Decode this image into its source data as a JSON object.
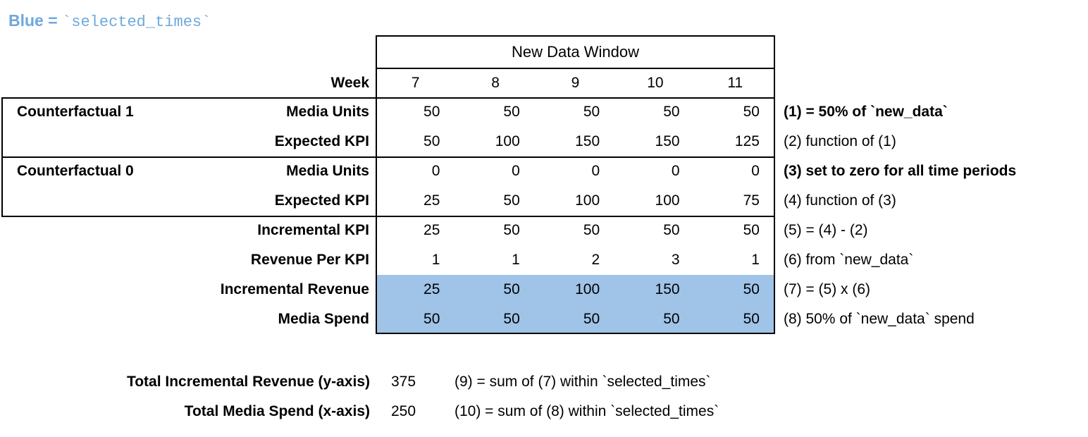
{
  "legend": {
    "prefix": "Blue = ",
    "code": "`selected_times`"
  },
  "table": {
    "header": "New Data Window",
    "week_label": "Week",
    "weeks": [
      "7",
      "8",
      "9",
      "10",
      "11"
    ],
    "group1_label": "Counterfactual 1",
    "group0_label": "Counterfactual 0",
    "rows": [
      {
        "label": "Media Units",
        "values": [
          "50",
          "50",
          "50",
          "50",
          "50"
        ],
        "annotation": "(1) = 50% of `new_data`"
      },
      {
        "label": "Expected KPI",
        "values": [
          "50",
          "100",
          "150",
          "150",
          "125"
        ],
        "annotation": "(2) function of (1)"
      },
      {
        "label": "Media Units",
        "values": [
          "0",
          "0",
          "0",
          "0",
          "0"
        ],
        "annotation": "(3) set to zero for all time periods"
      },
      {
        "label": "Expected KPI",
        "values": [
          "25",
          "50",
          "100",
          "100",
          "75"
        ],
        "annotation": "(4) function of (3)"
      },
      {
        "label": "Incremental KPI",
        "values": [
          "25",
          "50",
          "50",
          "50",
          "50"
        ],
        "annotation": "(5) = (4) - (2)"
      },
      {
        "label": "Revenue Per KPI",
        "values": [
          "1",
          "1",
          "2",
          "3",
          "1"
        ],
        "annotation": "(6) from `new_data`"
      },
      {
        "label": "Incremental Revenue",
        "values": [
          "25",
          "50",
          "100",
          "150",
          "50"
        ],
        "annotation": "(7) = (5) x (6)"
      },
      {
        "label": "Media Spend",
        "values": [
          "50",
          "50",
          "50",
          "50",
          "50"
        ],
        "annotation": "(8) 50% of `new_data` spend"
      }
    ]
  },
  "totals": [
    {
      "label": "Total Incremental Revenue (y-axis)",
      "value": "375",
      "annotation": "(9) = sum of (7) within `selected_times`"
    },
    {
      "label": "Total Media Spend (x-axis)",
      "value": "250",
      "annotation": "(10) = sum of (8) within `selected_times`"
    }
  ],
  "colors": {
    "highlight_blue": "#a0c3e8",
    "legend_blue": "#6fa8dc",
    "border_black": "#000000"
  },
  "chart_data": {
    "type": "table",
    "title": "New Data Window",
    "columns": [
      "Week 7",
      "Week 8",
      "Week 9",
      "Week 10",
      "Week 11"
    ],
    "rows": [
      {
        "group": "Counterfactual 1",
        "name": "Media Units",
        "values": [
          50,
          50,
          50,
          50,
          50
        ],
        "note": "(1) = 50% of `new_data`"
      },
      {
        "group": "Counterfactual 1",
        "name": "Expected KPI",
        "values": [
          50,
          100,
          150,
          150,
          125
        ],
        "note": "(2) function of (1)"
      },
      {
        "group": "Counterfactual 0",
        "name": "Media Units",
        "values": [
          0,
          0,
          0,
          0,
          0
        ],
        "note": "(3) set to zero for all time periods"
      },
      {
        "group": "Counterfactual 0",
        "name": "Expected KPI",
        "values": [
          25,
          50,
          100,
          100,
          75
        ],
        "note": "(4) function of (3)"
      },
      {
        "group": "",
        "name": "Incremental KPI",
        "values": [
          25,
          50,
          50,
          50,
          50
        ],
        "note": "(5) = (4) - (2)"
      },
      {
        "group": "",
        "name": "Revenue Per KPI",
        "values": [
          1,
          1,
          2,
          3,
          1
        ],
        "note": "(6) from `new_data`"
      },
      {
        "group": "",
        "name": "Incremental Revenue",
        "values": [
          25,
          50,
          100,
          150,
          50
        ],
        "note": "(7) = (5) x (6)",
        "highlighted": true
      },
      {
        "group": "",
        "name": "Media Spend",
        "values": [
          50,
          50,
          50,
          50,
          50
        ],
        "note": "(8) 50% of `new_data` spend",
        "highlighted": true
      }
    ],
    "highlight_meaning": "Blue = `selected_times`",
    "totals": [
      {
        "name": "Total Incremental Revenue (y-axis)",
        "value": 375,
        "note": "(9) = sum of (7) within `selected_times`"
      },
      {
        "name": "Total Media Spend (x-axis)",
        "value": 250,
        "note": "(10) = sum of (8) within `selected_times`"
      }
    ]
  }
}
